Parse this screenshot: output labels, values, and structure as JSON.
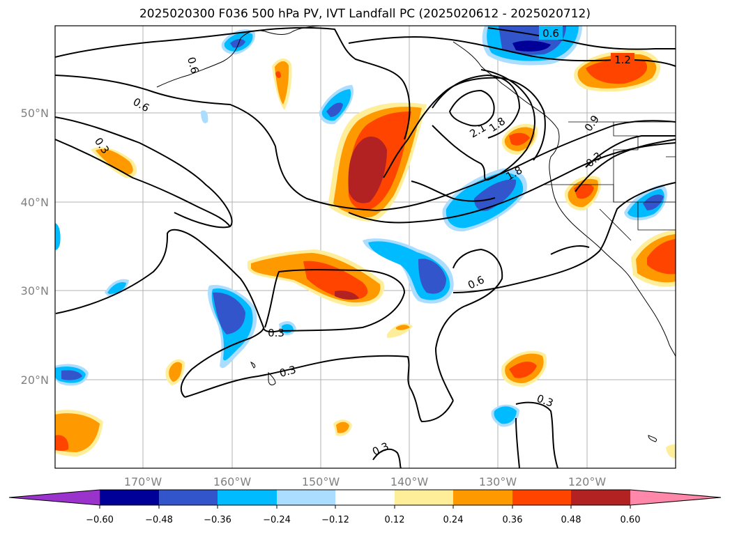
{
  "title": "2025020300 F036 500 hPa PV, IVT Landfall PC (2025020612 - 2025020712)",
  "axes": {
    "lon_ticks": [
      "170°W",
      "160°W",
      "150°W",
      "140°W",
      "130°W",
      "120°W"
    ],
    "lat_ticks": [
      "50°N",
      "40°N",
      "30°N",
      "20°N"
    ]
  },
  "colorbar": {
    "labels": [
      "−0.60",
      "−0.48",
      "−0.36",
      "−0.24",
      "−0.12",
      "0.12",
      "0.24",
      "0.36",
      "0.48",
      "0.60"
    ],
    "colors": [
      "#9933cc",
      "#000099",
      "#3355cc",
      "#00bbff",
      "#aaddff",
      "#ffffff",
      "#ffee99",
      "#ff9900",
      "#ff4400",
      "#b22222",
      "#ff88aa"
    ]
  },
  "contour_labels": [
    "0.6",
    "1.2",
    "2.1",
    "1.8",
    "1.8",
    "0.9",
    "0.3",
    "0.6",
    "0.6",
    "0.3",
    "0.6",
    "0.3",
    "0.3",
    "0.3",
    "0.3"
  ]
}
